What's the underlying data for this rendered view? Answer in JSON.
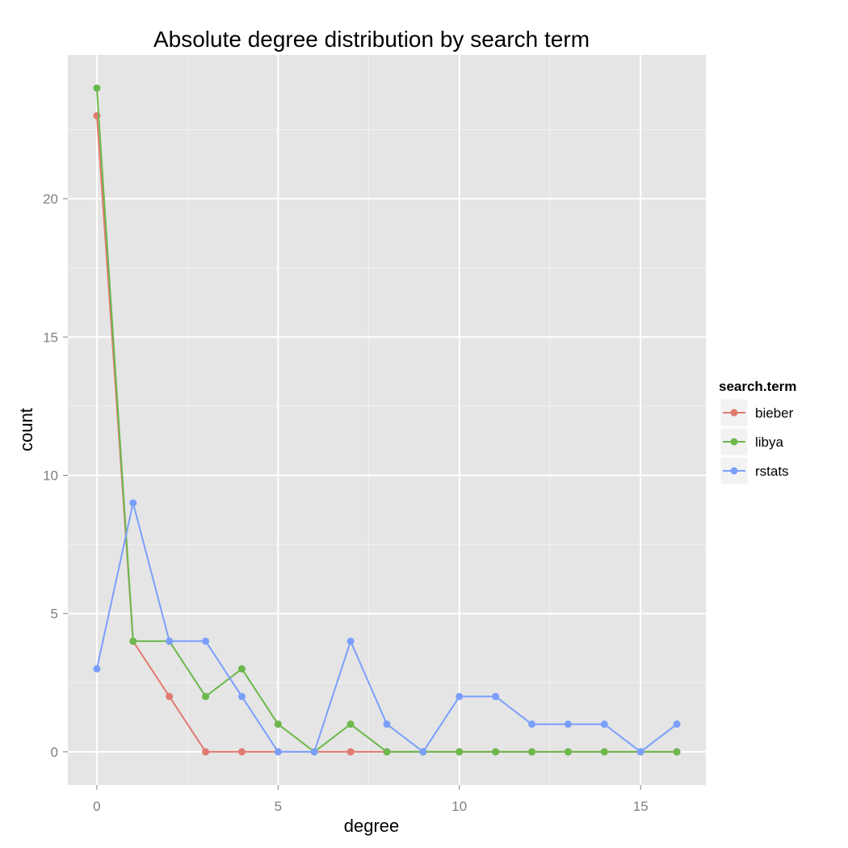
{
  "chart_data": {
    "type": "line",
    "title": "Absolute degree distribution by search term",
    "xlabel": "degree",
    "ylabel": "count",
    "xlim": [
      -0.8,
      16.8
    ],
    "ylim": [
      -1.2,
      25.2
    ],
    "x_ticks": [
      0,
      5,
      10,
      15
    ],
    "y_ticks": [
      0,
      5,
      10,
      15,
      20
    ],
    "grid": true,
    "legend": {
      "title": "search.term",
      "placement": "right"
    },
    "x": [
      0,
      1,
      2,
      3,
      4,
      5,
      6,
      7,
      8,
      9,
      10,
      11,
      12,
      13,
      14,
      15,
      16
    ],
    "series": [
      {
        "name": "bieber",
        "color": "#e07a70",
        "values": [
          23,
          4,
          2,
          0,
          0,
          0,
          0,
          0,
          0,
          0,
          0,
          0,
          0,
          0,
          0,
          0,
          0
        ]
      },
      {
        "name": "libya",
        "color": "#6bb84c",
        "values": [
          24,
          4,
          4,
          2,
          3,
          1,
          0,
          1,
          0,
          0,
          0,
          0,
          0,
          0,
          0,
          0,
          0
        ]
      },
      {
        "name": "rstats",
        "color": "#7a9ffb",
        "values": [
          3,
          9,
          4,
          4,
          2,
          0,
          0,
          4,
          1,
          0,
          2,
          2,
          1,
          1,
          1,
          0,
          1
        ]
      }
    ]
  }
}
